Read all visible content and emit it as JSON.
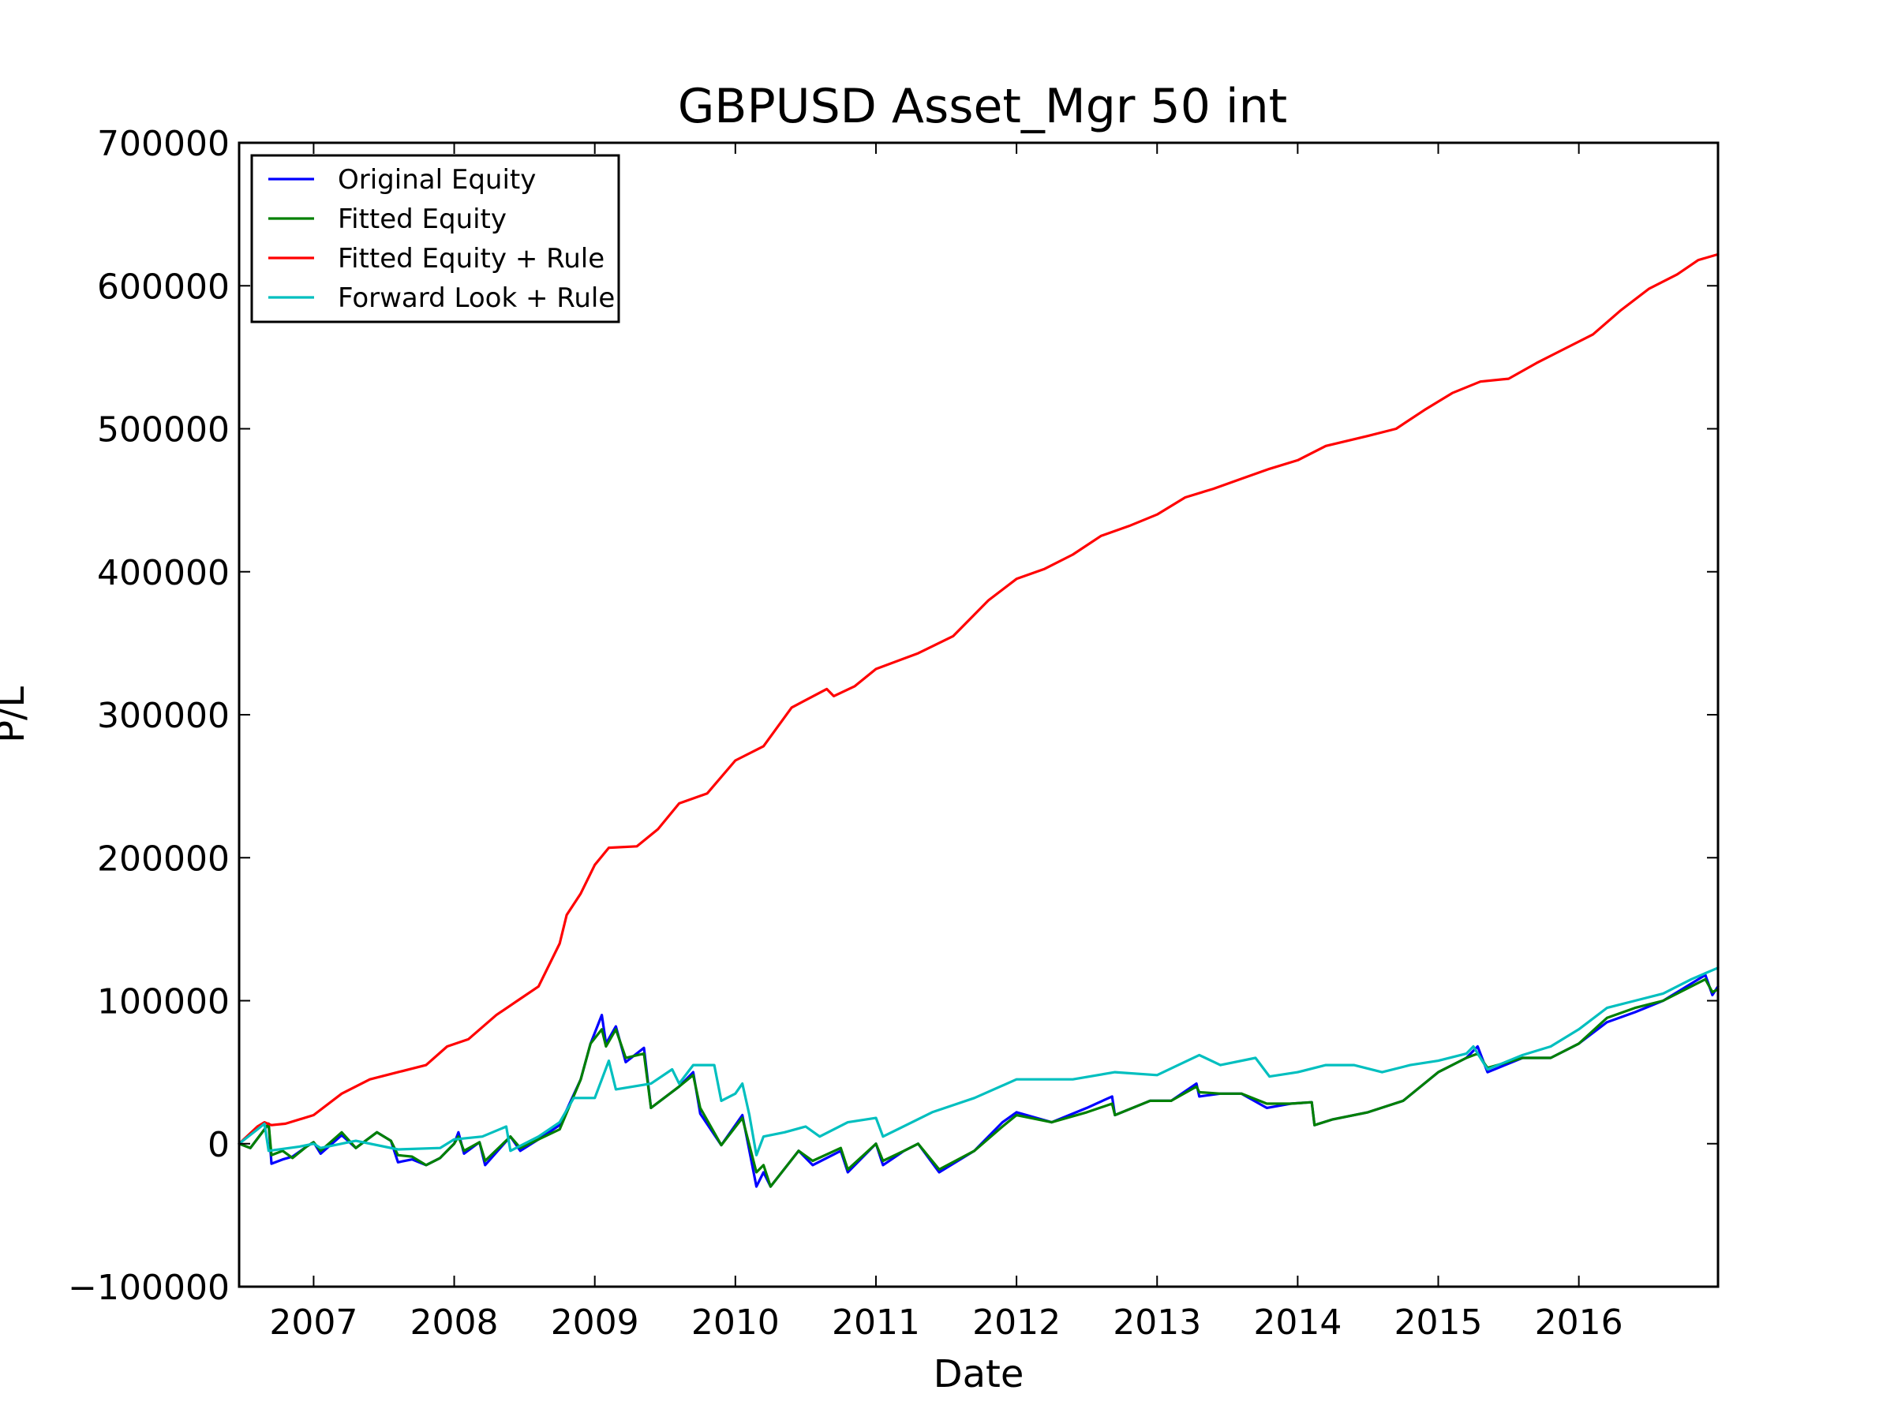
{
  "chart_data": {
    "type": "line",
    "title": "GBPUSD Asset_Mgr 50 int",
    "xlabel": "Date",
    "ylabel": "P/L",
    "xlim": [
      2006.47,
      2016.99
    ],
    "ylim": [
      -100000,
      700000
    ],
    "x_tick_labels": [
      "2007",
      "2008",
      "2009",
      "2010",
      "2011",
      "2012",
      "2013",
      "2014",
      "2015",
      "2016"
    ],
    "y_tick_labels": [
      "−100000",
      "0",
      "100000",
      "200000",
      "300000",
      "400000",
      "500000",
      "600000",
      "700000"
    ],
    "grid": false,
    "legend_position": "upper-left",
    "series": [
      {
        "name": "Original Equity",
        "color": "#0000ff",
        "points": [
          [
            2006.47,
            0
          ],
          [
            2006.55,
            -3000
          ],
          [
            2006.65,
            10000
          ],
          [
            2006.68,
            14000
          ],
          [
            2006.7,
            -14000
          ],
          [
            2006.78,
            -11000
          ],
          [
            2006.85,
            -9000
          ],
          [
            2006.95,
            -2000
          ],
          [
            2007.0,
            1000
          ],
          [
            2007.05,
            -7000
          ],
          [
            2007.2,
            6000
          ],
          [
            2007.3,
            -3000
          ],
          [
            2007.45,
            8000
          ],
          [
            2007.55,
            2000
          ],
          [
            2007.6,
            -13000
          ],
          [
            2007.7,
            -11000
          ],
          [
            2007.8,
            -15000
          ],
          [
            2007.9,
            -10000
          ],
          [
            2008.0,
            0
          ],
          [
            2008.03,
            8000
          ],
          [
            2008.07,
            -7000
          ],
          [
            2008.18,
            1000
          ],
          [
            2008.22,
            -15000
          ],
          [
            2008.4,
            5000
          ],
          [
            2008.47,
            -5000
          ],
          [
            2008.6,
            3000
          ],
          [
            2008.75,
            13000
          ],
          [
            2008.9,
            45000
          ],
          [
            2008.97,
            70000
          ],
          [
            2009.05,
            90000
          ],
          [
            2009.08,
            70000
          ],
          [
            2009.15,
            82000
          ],
          [
            2009.22,
            57000
          ],
          [
            2009.35,
            67000
          ],
          [
            2009.4,
            25000
          ],
          [
            2009.6,
            40000
          ],
          [
            2009.7,
            50000
          ],
          [
            2009.75,
            21000
          ],
          [
            2009.9,
            -1000
          ],
          [
            2010.05,
            20000
          ],
          [
            2010.15,
            -30000
          ],
          [
            2010.2,
            -20000
          ],
          [
            2010.25,
            -30000
          ],
          [
            2010.45,
            -5000
          ],
          [
            2010.55,
            -15000
          ],
          [
            2010.75,
            -5000
          ],
          [
            2010.8,
            -20000
          ],
          [
            2011.0,
            0
          ],
          [
            2011.05,
            -15000
          ],
          [
            2011.2,
            -5000
          ],
          [
            2011.3,
            0
          ],
          [
            2011.45,
            -20000
          ],
          [
            2011.7,
            -5000
          ],
          [
            2011.9,
            15000
          ],
          [
            2012.0,
            22000
          ],
          [
            2012.25,
            15000
          ],
          [
            2012.5,
            25000
          ],
          [
            2012.68,
            33000
          ],
          [
            2012.7,
            20000
          ],
          [
            2012.95,
            30000
          ],
          [
            2013.1,
            30000
          ],
          [
            2013.28,
            42000
          ],
          [
            2013.3,
            33000
          ],
          [
            2013.45,
            35000
          ],
          [
            2013.6,
            35000
          ],
          [
            2013.78,
            25000
          ],
          [
            2013.95,
            28000
          ],
          [
            2014.1,
            29000
          ],
          [
            2014.12,
            13000
          ],
          [
            2014.25,
            17000
          ],
          [
            2014.5,
            22000
          ],
          [
            2014.75,
            30000
          ],
          [
            2015.0,
            50000
          ],
          [
            2015.2,
            60000
          ],
          [
            2015.28,
            68000
          ],
          [
            2015.35,
            50000
          ],
          [
            2015.6,
            60000
          ],
          [
            2015.8,
            60000
          ],
          [
            2016.0,
            70000
          ],
          [
            2016.2,
            85000
          ],
          [
            2016.4,
            92000
          ],
          [
            2016.6,
            100000
          ],
          [
            2016.9,
            118000
          ],
          [
            2016.95,
            104000
          ],
          [
            2016.99,
            110000
          ]
        ]
      },
      {
        "name": "Fitted Equity",
        "color": "#008000",
        "points": [
          [
            2006.47,
            0
          ],
          [
            2006.55,
            -3000
          ],
          [
            2006.65,
            10000
          ],
          [
            2006.68,
            14000
          ],
          [
            2006.7,
            -8000
          ],
          [
            2006.78,
            -5000
          ],
          [
            2006.85,
            -10000
          ],
          [
            2006.95,
            -2000
          ],
          [
            2007.0,
            1000
          ],
          [
            2007.05,
            -5000
          ],
          [
            2007.2,
            8000
          ],
          [
            2007.3,
            -3000
          ],
          [
            2007.45,
            8000
          ],
          [
            2007.55,
            2000
          ],
          [
            2007.6,
            -8000
          ],
          [
            2007.7,
            -9000
          ],
          [
            2007.8,
            -15000
          ],
          [
            2007.9,
            -10000
          ],
          [
            2008.0,
            0
          ],
          [
            2008.03,
            5000
          ],
          [
            2008.07,
            -5000
          ],
          [
            2008.18,
            1000
          ],
          [
            2008.22,
            -12000
          ],
          [
            2008.4,
            5000
          ],
          [
            2008.47,
            -3000
          ],
          [
            2008.6,
            3000
          ],
          [
            2008.75,
            10000
          ],
          [
            2008.9,
            45000
          ],
          [
            2008.97,
            70000
          ],
          [
            2009.05,
            80000
          ],
          [
            2009.08,
            68000
          ],
          [
            2009.15,
            80000
          ],
          [
            2009.22,
            60000
          ],
          [
            2009.35,
            63000
          ],
          [
            2009.4,
            25000
          ],
          [
            2009.6,
            40000
          ],
          [
            2009.7,
            48000
          ],
          [
            2009.75,
            25000
          ],
          [
            2009.9,
            -1000
          ],
          [
            2010.05,
            18000
          ],
          [
            2010.15,
            -20000
          ],
          [
            2010.2,
            -15000
          ],
          [
            2010.25,
            -30000
          ],
          [
            2010.45,
            -5000
          ],
          [
            2010.55,
            -12000
          ],
          [
            2010.75,
            -3000
          ],
          [
            2010.8,
            -18000
          ],
          [
            2011.0,
            0
          ],
          [
            2011.05,
            -12000
          ],
          [
            2011.2,
            -5000
          ],
          [
            2011.3,
            0
          ],
          [
            2011.45,
            -18000
          ],
          [
            2011.7,
            -5000
          ],
          [
            2011.9,
            12000
          ],
          [
            2012.0,
            20000
          ],
          [
            2012.25,
            15000
          ],
          [
            2012.5,
            22000
          ],
          [
            2012.68,
            28000
          ],
          [
            2012.7,
            20000
          ],
          [
            2012.95,
            30000
          ],
          [
            2013.1,
            30000
          ],
          [
            2013.28,
            40000
          ],
          [
            2013.3,
            36000
          ],
          [
            2013.45,
            35000
          ],
          [
            2013.6,
            35000
          ],
          [
            2013.78,
            28000
          ],
          [
            2013.95,
            28000
          ],
          [
            2014.1,
            29000
          ],
          [
            2014.12,
            13000
          ],
          [
            2014.25,
            17000
          ],
          [
            2014.5,
            22000
          ],
          [
            2014.75,
            30000
          ],
          [
            2015.0,
            50000
          ],
          [
            2015.2,
            60000
          ],
          [
            2015.28,
            63000
          ],
          [
            2015.35,
            53000
          ],
          [
            2015.6,
            60000
          ],
          [
            2015.8,
            60000
          ],
          [
            2016.0,
            70000
          ],
          [
            2016.2,
            88000
          ],
          [
            2016.4,
            95000
          ],
          [
            2016.6,
            100000
          ],
          [
            2016.9,
            115000
          ],
          [
            2016.95,
            106000
          ],
          [
            2016.99,
            108000
          ]
        ]
      },
      {
        "name": "Fitted Equity + Rule",
        "color": "#ff0000",
        "points": [
          [
            2006.47,
            0
          ],
          [
            2006.6,
            12000
          ],
          [
            2006.65,
            15000
          ],
          [
            2006.7,
            13000
          ],
          [
            2006.8,
            14000
          ],
          [
            2007.0,
            20000
          ],
          [
            2007.2,
            35000
          ],
          [
            2007.4,
            45000
          ],
          [
            2007.6,
            50000
          ],
          [
            2007.8,
            55000
          ],
          [
            2007.95,
            68000
          ],
          [
            2008.1,
            73000
          ],
          [
            2008.3,
            90000
          ],
          [
            2008.45,
            100000
          ],
          [
            2008.6,
            110000
          ],
          [
            2008.75,
            140000
          ],
          [
            2008.8,
            160000
          ],
          [
            2008.9,
            175000
          ],
          [
            2009.0,
            195000
          ],
          [
            2009.1,
            207000
          ],
          [
            2009.3,
            208000
          ],
          [
            2009.45,
            220000
          ],
          [
            2009.6,
            238000
          ],
          [
            2009.8,
            245000
          ],
          [
            2010.0,
            268000
          ],
          [
            2010.2,
            278000
          ],
          [
            2010.4,
            305000
          ],
          [
            2010.65,
            318000
          ],
          [
            2010.7,
            313000
          ],
          [
            2010.85,
            320000
          ],
          [
            2011.0,
            332000
          ],
          [
            2011.3,
            343000
          ],
          [
            2011.55,
            355000
          ],
          [
            2011.8,
            380000
          ],
          [
            2012.0,
            395000
          ],
          [
            2012.2,
            402000
          ],
          [
            2012.4,
            412000
          ],
          [
            2012.6,
            425000
          ],
          [
            2012.8,
            432000
          ],
          [
            2013.0,
            440000
          ],
          [
            2013.2,
            452000
          ],
          [
            2013.4,
            458000
          ],
          [
            2013.6,
            465000
          ],
          [
            2013.8,
            472000
          ],
          [
            2014.0,
            478000
          ],
          [
            2014.2,
            488000
          ],
          [
            2014.5,
            495000
          ],
          [
            2014.7,
            500000
          ],
          [
            2014.9,
            513000
          ],
          [
            2015.1,
            525000
          ],
          [
            2015.3,
            533000
          ],
          [
            2015.5,
            535000
          ],
          [
            2015.7,
            546000
          ],
          [
            2015.9,
            556000
          ],
          [
            2016.1,
            566000
          ],
          [
            2016.3,
            583000
          ],
          [
            2016.5,
            598000
          ],
          [
            2016.7,
            608000
          ],
          [
            2016.85,
            618000
          ],
          [
            2016.99,
            622000
          ]
        ]
      },
      {
        "name": "Forward Look + Rule",
        "color": "#00bfbf",
        "points": [
          [
            2006.47,
            0
          ],
          [
            2006.6,
            10000
          ],
          [
            2006.65,
            14000
          ],
          [
            2006.68,
            -5000
          ],
          [
            2006.9,
            -2000
          ],
          [
            2007.0,
            0
          ],
          [
            2007.05,
            -3000
          ],
          [
            2007.3,
            2000
          ],
          [
            2007.6,
            -4000
          ],
          [
            2007.9,
            -3000
          ],
          [
            2008.0,
            3000
          ],
          [
            2008.2,
            5000
          ],
          [
            2008.37,
            12000
          ],
          [
            2008.4,
            -5000
          ],
          [
            2008.6,
            5000
          ],
          [
            2008.75,
            15000
          ],
          [
            2008.85,
            32000
          ],
          [
            2009.0,
            32000
          ],
          [
            2009.1,
            58000
          ],
          [
            2009.15,
            38000
          ],
          [
            2009.4,
            42000
          ],
          [
            2009.55,
            52000
          ],
          [
            2009.6,
            42000
          ],
          [
            2009.7,
            55000
          ],
          [
            2009.85,
            55000
          ],
          [
            2009.9,
            30000
          ],
          [
            2010.0,
            35000
          ],
          [
            2010.05,
            42000
          ],
          [
            2010.1,
            20000
          ],
          [
            2010.15,
            -8000
          ],
          [
            2010.2,
            5000
          ],
          [
            2010.35,
            8000
          ],
          [
            2010.5,
            12000
          ],
          [
            2010.6,
            5000
          ],
          [
            2010.8,
            15000
          ],
          [
            2011.0,
            18000
          ],
          [
            2011.05,
            5000
          ],
          [
            2011.4,
            22000
          ],
          [
            2011.7,
            32000
          ],
          [
            2012.0,
            45000
          ],
          [
            2012.2,
            45000
          ],
          [
            2012.4,
            45000
          ],
          [
            2012.7,
            50000
          ],
          [
            2013.0,
            48000
          ],
          [
            2013.15,
            55000
          ],
          [
            2013.3,
            62000
          ],
          [
            2013.45,
            55000
          ],
          [
            2013.7,
            60000
          ],
          [
            2013.8,
            47000
          ],
          [
            2014.0,
            50000
          ],
          [
            2014.2,
            55000
          ],
          [
            2014.4,
            55000
          ],
          [
            2014.6,
            50000
          ],
          [
            2014.8,
            55000
          ],
          [
            2015.0,
            58000
          ],
          [
            2015.2,
            63000
          ],
          [
            2015.25,
            68000
          ],
          [
            2015.35,
            52000
          ],
          [
            2015.6,
            62000
          ],
          [
            2015.8,
            68000
          ],
          [
            2016.0,
            80000
          ],
          [
            2016.2,
            95000
          ],
          [
            2016.4,
            100000
          ],
          [
            2016.6,
            105000
          ],
          [
            2016.8,
            115000
          ],
          [
            2016.99,
            123000
          ]
        ]
      }
    ]
  }
}
